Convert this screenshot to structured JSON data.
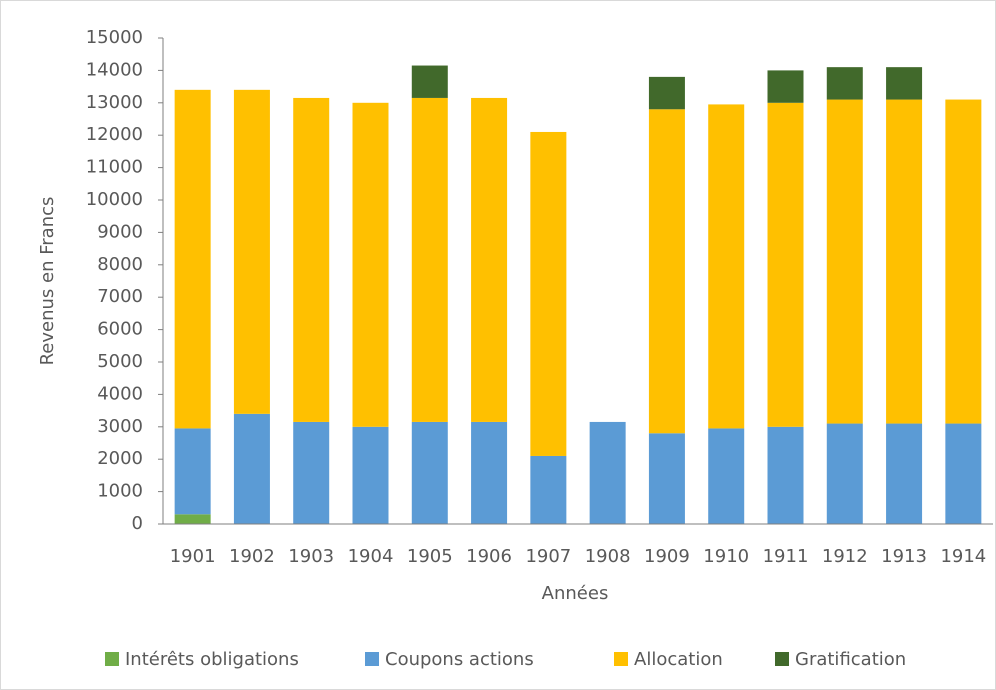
{
  "chart_data": {
    "type": "bar",
    "stacked": true,
    "x_label": "Années",
    "y_label": "Revenus  en Francs",
    "categories": [
      "1901",
      "1902",
      "1903",
      "1904",
      "1905",
      "1906",
      "1907",
      "1908",
      "1909",
      "1910",
      "1911",
      "1912",
      "1913",
      "1914"
    ],
    "series": [
      {
        "name": "Intérêts obligations",
        "color": "#70ad47",
        "values": [
          300,
          0,
          0,
          0,
          0,
          0,
          0,
          0,
          0,
          0,
          0,
          0,
          0,
          0
        ]
      },
      {
        "name": "Coupons actions",
        "color": "#5b9bd5",
        "values": [
          2650,
          3400,
          3150,
          3000,
          3150,
          3150,
          2100,
          3150,
          2800,
          2950,
          3000,
          3100,
          3100,
          3100
        ]
      },
      {
        "name": "Allocation",
        "color": "#ffc000",
        "values": [
          10450,
          10000,
          10000,
          10000,
          10000,
          10000,
          10000,
          0,
          10000,
          10000,
          10000,
          10000,
          10000,
          10000
        ]
      },
      {
        "name": "Gratification",
        "color": "#41692b",
        "values": [
          0,
          0,
          0,
          0,
          1000,
          0,
          0,
          0,
          1000,
          0,
          1000,
          1000,
          1000,
          0
        ]
      }
    ],
    "ylim": [
      0,
      15000
    ],
    "yticks": [
      0,
      1000,
      2000,
      3000,
      4000,
      5000,
      6000,
      7000,
      8000,
      9000,
      10000,
      11000,
      12000,
      13000,
      14000,
      15000
    ],
    "grid": false,
    "legend": "bottom"
  }
}
